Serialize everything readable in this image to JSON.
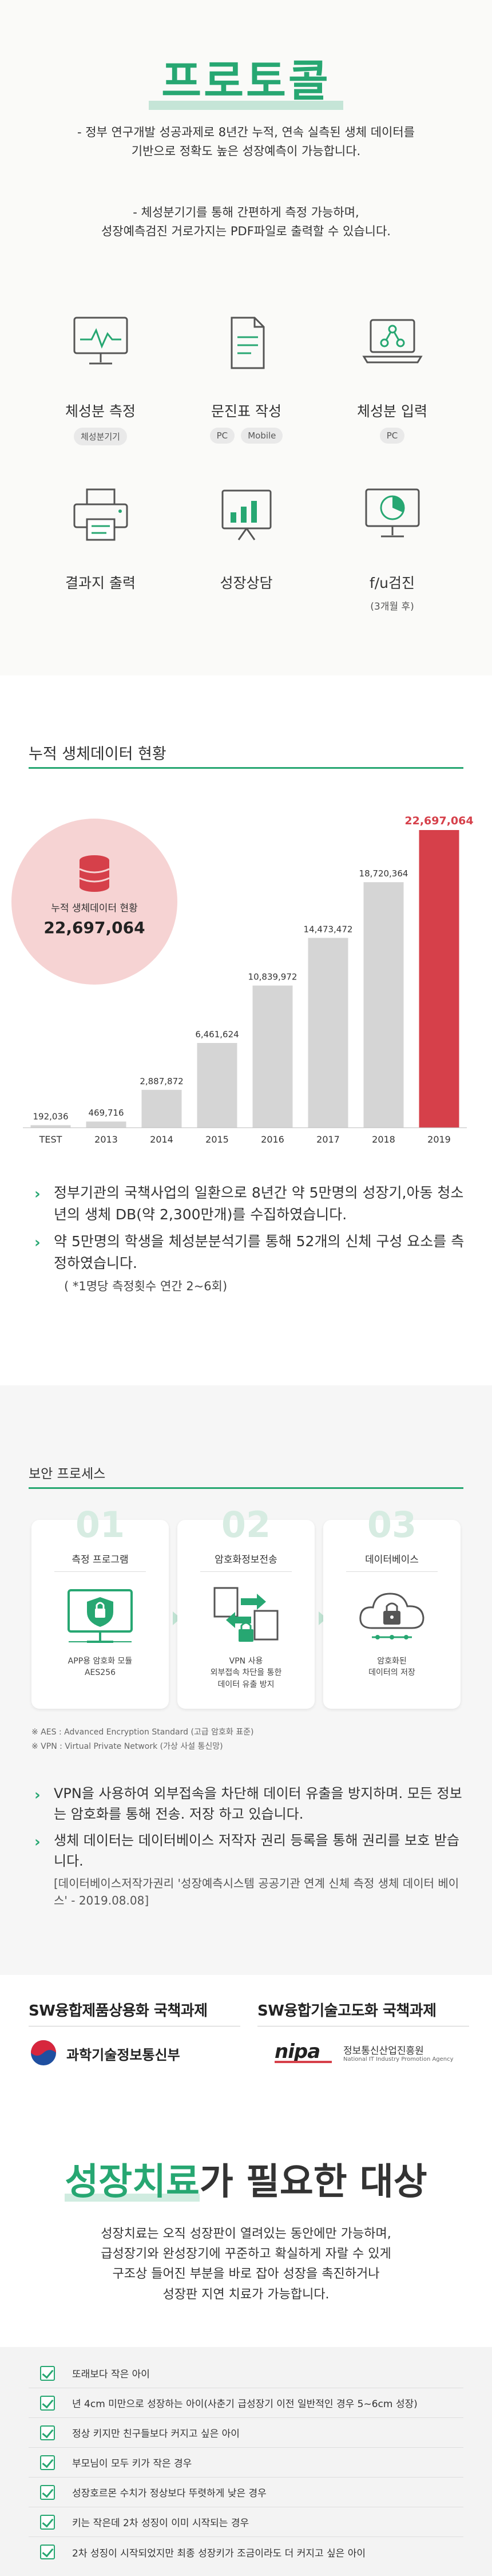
{
  "protocol": {
    "title": "프로토콜",
    "intro_line1": "- 정부 연구개발 성공과제로 8년간 누적, 연속 실측된 생체 데이터를",
    "intro_line2": "기반으로 정확도 높은 성장예측이 가능합니다.",
    "intro_line3": "- 체성분기기를 통해 간편하게 측정 가능하며,",
    "intro_line4": "성장예측검진 거로가지는 PDF파일로 출력할 수 있습니다.",
    "items": [
      {
        "title": "체성분 측정",
        "tags": [
          "체성분기기"
        ],
        "icon": "monitor-heartbeat-icon"
      },
      {
        "title": "문진표 작성",
        "tags": [
          "PC",
          "Mobile"
        ],
        "icon": "document-icon"
      },
      {
        "title": "체성분 입력",
        "tags": [
          "PC"
        ],
        "icon": "laptop-network-icon"
      },
      {
        "title": "결과지 출력",
        "tags": [],
        "icon": "printer-icon"
      },
      {
        "title": "성장상담",
        "tags": [],
        "icon": "chart-board-icon"
      },
      {
        "title": "f/u검진",
        "sub": "(3개월 후)",
        "icon": "monitor-pie-icon"
      }
    ]
  },
  "cumulative": {
    "heading": "누적 생체데이터 현황",
    "badge_label": "누적 생체데이터 현황",
    "badge_value": "22,697,064",
    "icon": "database-icon"
  },
  "chart_data": {
    "type": "bar",
    "title": "누적 생체데이터 현황",
    "categories": [
      "TEST",
      "2013",
      "2014",
      "2015",
      "2016",
      "2017",
      "2018",
      "2019"
    ],
    "values": [
      192036,
      469716,
      2887872,
      6461624,
      10839972,
      14473472,
      18720364,
      22697064
    ],
    "value_labels": [
      "192,036",
      "469,716",
      "2,887,872",
      "6,461,624",
      "10,839,972",
      "14,473,472",
      "18,720,364",
      "22,697,064"
    ],
    "colors": {
      "default": "#d5d5d5",
      "highlight": "#d6404a"
    },
    "highlight_index": 7,
    "ylim": [
      0,
      22697064
    ],
    "grid": false
  },
  "chart_bullets": [
    {
      "text": "정부기관의 국책사업의 일환으로 8년간 약 5만명의 성장기,아동 청소년의 생체 DB(약 2,300만개)를 수집하였습니다."
    },
    {
      "text": "약 5만명의 학생을 체성분분석기를 통해 52개의 신체 구성 요소를 측정하였습니다.",
      "note": "( *1명당 측정횟수 연간 2~6회)"
    }
  ],
  "security": {
    "heading": "보안 프로세스",
    "steps": [
      {
        "num": "01",
        "title": "측정 프로그램",
        "caption": [
          "APP용 암호화 모듈",
          "AES256"
        ],
        "icon": "shield-monitor-icon"
      },
      {
        "num": "02",
        "title": "암호화정보전송",
        "caption": [
          "VPN 사용",
          "외부접속 차단을 통한",
          "데이터 유출 방지"
        ],
        "icon": "transfer-icon"
      },
      {
        "num": "03",
        "title": "데이터베이스",
        "caption": [
          "암호화된",
          "데이터의 저장"
        ],
        "icon": "cloud-lock-icon"
      }
    ],
    "footnote1": "※ AES : Advanced Encryption Standard (고급 암호화 표준)",
    "footnote2": "※ VPN : Virtual Private Network (가상 사설 통신망)",
    "bullets": [
      {
        "text": "VPN을 사용하여 외부접속을 차단해 데이터 유출을 방지하며. 모든 정보는 암호화를 통해 전송. 저장 하고 있습니다."
      },
      {
        "text": "생체 데이터는 데이터베이스 저작자 권리 등록을 통해 권리를 보호 받습니다.",
        "note": "[데이터베이스저작가권리 '성장예측시스템 공공기관 연계 신체 측정 생체 데이터 베이스' - 2019.08.08]"
      }
    ]
  },
  "funding": [
    {
      "title": "SW융합제품상용화 국책과제",
      "logo_text": "과학기술정보통신부",
      "logo": "ministry-emblem-icon"
    },
    {
      "title": "SW융합기술고도화 국책과제",
      "logo_text": "정보통신산업진흥원",
      "logo_sub": "National IT Industry Promotion Agency",
      "logo_mark": "nipa",
      "logo": "nipa-logo-icon"
    }
  ],
  "targets": {
    "title_accent": "성장치료",
    "title_rest": "가 필요한 대상",
    "intro": [
      "성장치료는 오직 성장판이 열려있는 동안에만 가능하며,",
      "급성장기와 완성장기에 꾸준하고 확실하게 자랄 수 있게",
      "구조상 들어진 부분을 바로 잡아 성장을 촉진하거나",
      "성장판 지연 치료가 가능합니다."
    ],
    "items": [
      "또래보다 작은 아이",
      "년 4cm 미만으로 성장하는 아이(사춘기 급성장기 이전 일반적인 경우 5~6cm 성장)",
      "정상 키지만 친구들보다 커지고 싶은 아이",
      "부모님이 모두 키가 작은 경우",
      "성장호르몬 수치가 정상보다 뚜렷하게 낮은 경우",
      "키는 작은데 2차 성징이 이미 시작되는 경우",
      "2차 성징이 시작되었지만 최종 성장키가 조금이라도 더 커지고 싶은 아이"
    ]
  }
}
